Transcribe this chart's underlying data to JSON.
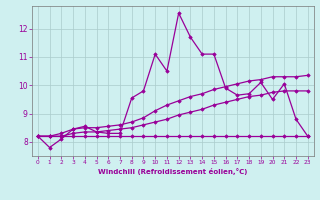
{
  "xlabel": "Windchill (Refroidissement éolien,°C)",
  "background_color": "#cff0f0",
  "line_color": "#990099",
  "grid_color": "#aacccc",
  "xlim": [
    -0.5,
    23.5
  ],
  "ylim": [
    7.5,
    12.8
  ],
  "xticks": [
    0,
    1,
    2,
    3,
    4,
    5,
    6,
    7,
    8,
    9,
    10,
    11,
    12,
    13,
    14,
    15,
    16,
    17,
    18,
    19,
    20,
    21,
    22,
    23
  ],
  "yticks": [
    8,
    9,
    10,
    11,
    12
  ],
  "line1_x": [
    0,
    1,
    2,
    3,
    4,
    5,
    6,
    7,
    8,
    9,
    10,
    11,
    12,
    13,
    14,
    15,
    16,
    17,
    18,
    19,
    20,
    21,
    22,
    23
  ],
  "line1_y": [
    8.2,
    7.8,
    8.1,
    8.45,
    8.55,
    8.35,
    8.3,
    8.3,
    9.55,
    9.8,
    11.1,
    10.5,
    12.55,
    11.7,
    11.1,
    11.1,
    9.9,
    9.65,
    9.7,
    10.1,
    9.5,
    10.05,
    8.8,
    8.2
  ],
  "line2_x": [
    0,
    1,
    2,
    3,
    4,
    5,
    6,
    7,
    8,
    9,
    10,
    11,
    12,
    13,
    14,
    15,
    16,
    17,
    18,
    19,
    20,
    21,
    22,
    23
  ],
  "line2_y": [
    8.2,
    8.2,
    8.3,
    8.45,
    8.5,
    8.5,
    8.55,
    8.6,
    8.7,
    8.85,
    9.1,
    9.3,
    9.45,
    9.6,
    9.7,
    9.85,
    9.95,
    10.05,
    10.15,
    10.2,
    10.3,
    10.3,
    10.3,
    10.35
  ],
  "line3_x": [
    0,
    1,
    2,
    3,
    4,
    5,
    6,
    7,
    8,
    9,
    10,
    11,
    12,
    13,
    14,
    15,
    16,
    17,
    18,
    19,
    20,
    21,
    22,
    23
  ],
  "line3_y": [
    8.2,
    8.2,
    8.2,
    8.3,
    8.35,
    8.35,
    8.4,
    8.45,
    8.5,
    8.6,
    8.7,
    8.8,
    8.95,
    9.05,
    9.15,
    9.3,
    9.4,
    9.5,
    9.6,
    9.65,
    9.75,
    9.8,
    9.8,
    9.8
  ],
  "line4_x": [
    0,
    1,
    2,
    3,
    4,
    5,
    6,
    7,
    8,
    9,
    10,
    11,
    12,
    13,
    14,
    15,
    16,
    17,
    18,
    19,
    20,
    21,
    22,
    23
  ],
  "line4_y": [
    8.2,
    8.2,
    8.2,
    8.2,
    8.2,
    8.2,
    8.2,
    8.2,
    8.2,
    8.2,
    8.2,
    8.2,
    8.2,
    8.2,
    8.2,
    8.2,
    8.2,
    8.2,
    8.2,
    8.2,
    8.2,
    8.2,
    8.2,
    8.2
  ]
}
